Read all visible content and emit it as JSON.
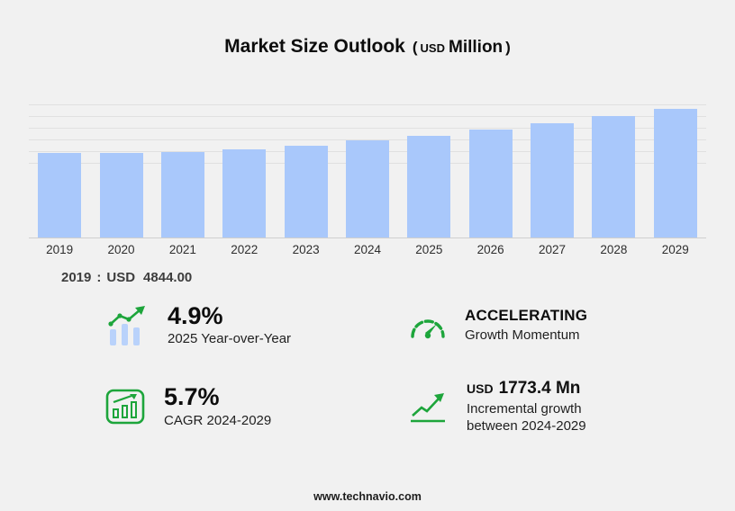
{
  "header": {
    "title": "Market Size Outlook",
    "open_paren": "(",
    "unit_currency": "USD",
    "unit_label": "Million",
    "close_paren": ")"
  },
  "chart_data": {
    "type": "bar",
    "title": "Market Size Outlook (USD Million)",
    "categories": [
      "2019",
      "2020",
      "2021",
      "2022",
      "2023",
      "2024",
      "2025",
      "2026",
      "2027",
      "2028",
      "2029"
    ],
    "values": [
      4844,
      4805,
      4880,
      5010,
      5230,
      5553.4,
      5825.5,
      6160,
      6525,
      6915,
      7326.8
    ],
    "ylabel": "USD Million",
    "ylim": [
      0,
      7600
    ],
    "grid": "horizontal-light",
    "legend": "none",
    "bar_color": "#a9c8fb"
  },
  "annotation": {
    "year": "2019",
    "colon": ":",
    "currency": "USD",
    "value": "4844.00"
  },
  "stats": {
    "yoy": {
      "value": "4.9%",
      "label": "2025 Year-over-Year"
    },
    "momentum": {
      "value": "ACCELERATING",
      "label": "Growth Momentum"
    },
    "cagr": {
      "value": "5.7%",
      "label": "CAGR 2024-2029"
    },
    "incremental": {
      "currency": "USD",
      "value": "1773.4 Mn",
      "label_line1": "Incremental growth",
      "label_line2": "between 2024-2029"
    }
  },
  "colors": {
    "accent_green": "#1da53b",
    "bar_blue": "#a9c8fb"
  },
  "footer": {
    "url": "www.technavio.com"
  }
}
